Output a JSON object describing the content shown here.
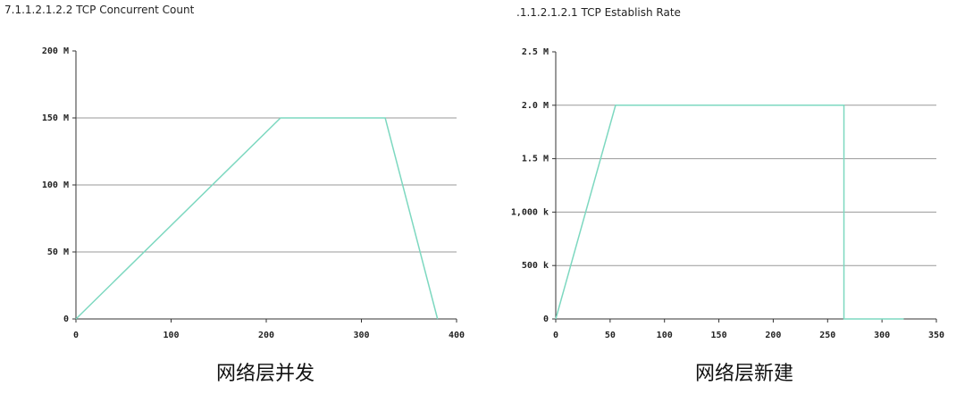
{
  "chart_data": [
    {
      "type": "line",
      "title": "7.1.1.2.1.2.2 TCP Concurrent Count",
      "caption": "网络层并发",
      "series": [
        {
          "color": "#7dd8c0",
          "x": [
            0,
            215,
            325,
            380
          ],
          "values": [
            0,
            150000000,
            150000000,
            0
          ]
        }
      ],
      "xlim": [
        0,
        400
      ],
      "xticks": [
        0,
        100,
        200,
        300,
        400
      ],
      "ylim": [
        0,
        200000000
      ],
      "yticks": [
        0,
        {
          "value": 50000000,
          "label": "50 M"
        },
        {
          "value": 100000000,
          "label": "100 M"
        },
        {
          "value": 150000000,
          "label": "150 M"
        },
        {
          "value": 200000000,
          "label": "200 M"
        }
      ],
      "grid": true
    },
    {
      "type": "line",
      "title": ".1.1.2.1.2.1 TCP Establish Rate",
      "caption": "网络层新建",
      "series": [
        {
          "color": "#7dd8c0",
          "x": [
            0,
            55,
            265,
            265,
            320
          ],
          "values": [
            0,
            2000000,
            2000000,
            0,
            0
          ]
        }
      ],
      "xlim": [
        0,
        350
      ],
      "xticks": [
        0,
        50,
        100,
        150,
        200,
        250,
        300,
        350
      ],
      "ylim": [
        0,
        2500000
      ],
      "yticks": [
        0,
        {
          "value": 500000,
          "label": "500 k"
        },
        {
          "value": 1000000,
          "label": "1,000 k"
        },
        {
          "value": 1500000,
          "label": "1.5 M"
        },
        {
          "value": 2000000,
          "label": "2.0 M"
        },
        {
          "value": 2500000,
          "label": "2.5 M"
        }
      ],
      "grid": true
    }
  ]
}
